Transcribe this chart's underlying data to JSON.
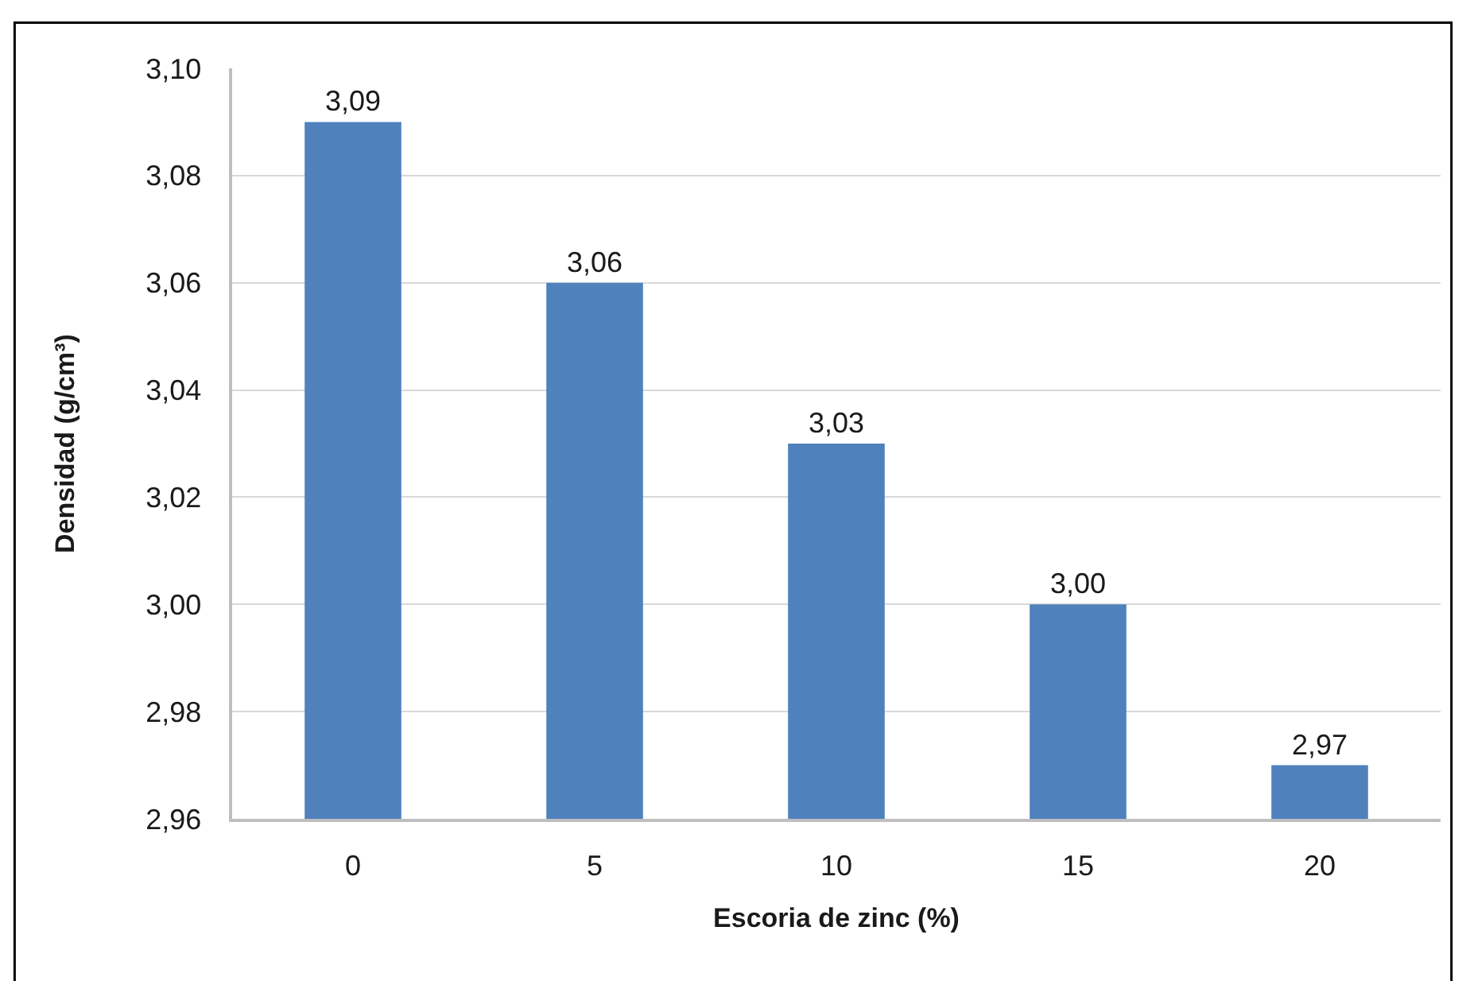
{
  "chart_data": {
    "type": "bar",
    "xlabel": "Escoria de zinc (%)",
    "ylabel": "Densidad (g/cm³)",
    "categories": [
      "0",
      "5",
      "10",
      "15",
      "20"
    ],
    "values": [
      3.09,
      3.06,
      3.03,
      3.0,
      2.97
    ],
    "color": "#4f81bd",
    "value_labels": [
      "3,09",
      "3,06",
      "3,03",
      "3,00",
      "2,97"
    ],
    "ylim": [
      2.96,
      3.1
    ],
    "yticks": [
      {
        "value": 2.96,
        "label": "2,96"
      },
      {
        "value": 2.98,
        "label": "2,98"
      },
      {
        "value": 3.0,
        "label": "3,00"
      },
      {
        "value": 3.02,
        "label": "3,02"
      },
      {
        "value": 3.04,
        "label": "3,04"
      },
      {
        "value": 3.06,
        "label": "3,06"
      },
      {
        "value": 3.08,
        "label": "3,08"
      },
      {
        "value": 3.1,
        "label": "3,10"
      }
    ],
    "grid": "y"
  }
}
